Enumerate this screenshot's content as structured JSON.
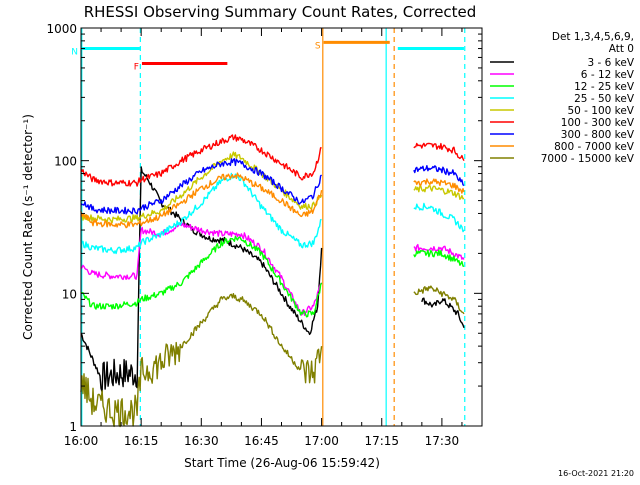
{
  "chart_data": {
    "type": "line",
    "title": "RHESSI Observing Summary Count Rates, Corrected",
    "ylabel": "Corrected Count Rate (s⁻¹ detector⁻¹)",
    "xlabel": "Start Time (26-Aug-06 15:59:42)",
    "yscale": "log",
    "ylim": [
      1,
      1000
    ],
    "xlim_min": [
      0,
      100
    ],
    "y_ticks": [
      {
        "value": 1,
        "label": "1"
      },
      {
        "value": 10,
        "label": "10"
      },
      {
        "value": 100,
        "label": "100"
      },
      {
        "value": 1000,
        "label": "1000"
      }
    ],
    "x_ticks": [
      {
        "value": 0,
        "label": "16:00"
      },
      {
        "value": 15,
        "label": "16:15"
      },
      {
        "value": 30,
        "label": "16:30"
      },
      {
        "value": 45,
        "label": "16:45"
      },
      {
        "value": 60,
        "label": "17:00"
      },
      {
        "value": 75,
        "label": "17:15"
      },
      {
        "value": 90,
        "label": "17:30"
      }
    ],
    "legend_header": [
      "Det 1,3,4,5,6,9,",
      "Att 0"
    ],
    "legend_position": "top-right",
    "timestamp": "16-Oct-2021 21:20",
    "flags": [
      {
        "label": "N",
        "color": "#00ffff",
        "bars": [
          [
            0,
            14.7
          ],
          [
            79,
            95.5
          ]
        ],
        "y": 700
      },
      {
        "label": "F",
        "color": "#ff0000",
        "bars": [
          [
            15.2,
            36.5
          ]
        ],
        "y": 540
      },
      {
        "label": "S",
        "color": "#ff8c00",
        "bars": [
          [
            60.5,
            77
          ]
        ],
        "y": 780
      }
    ],
    "vlines": [
      {
        "x": 0.2,
        "color": "#00ffff",
        "style": "solid"
      },
      {
        "x": 14.8,
        "color": "#00ffff",
        "style": "dashed"
      },
      {
        "x": 60.3,
        "color": "#ff8c00",
        "style": "solid"
      },
      {
        "x": 76.1,
        "color": "#00ffff",
        "style": "solid"
      },
      {
        "x": 78.1,
        "color": "#ff8c00",
        "style": "dashed"
      },
      {
        "x": 95.7,
        "color": "#00ffff",
        "style": "dashed"
      }
    ],
    "gap": [
      60,
      80
    ],
    "series": [
      {
        "name": "3 - 6 keV",
        "color": "#000000",
        "x": [
          0,
          5,
          10,
          14,
          15,
          17,
          20,
          25,
          28,
          32,
          36,
          40,
          45,
          50,
          52,
          55,
          57,
          59,
          60,
          80,
          85,
          88,
          90,
          92,
          94,
          95.5
        ],
        "y": [
          5,
          2.3,
          2.5,
          2.5,
          85,
          70,
          48,
          36,
          30,
          26,
          25,
          22,
          17,
          10,
          8,
          6,
          5,
          8,
          22,
          null,
          9,
          8,
          9,
          8,
          7,
          5.5
        ]
      },
      {
        "name": "6 - 12 keV",
        "color": "#ff00ff",
        "x": [
          0,
          3,
          8,
          14,
          15,
          20,
          25,
          30,
          35,
          40,
          45,
          50,
          55,
          58,
          60,
          80,
          83,
          87,
          90,
          93,
          95.5
        ],
        "y": [
          16,
          14,
          13.5,
          13.5,
          30,
          28,
          33,
          30,
          28,
          28,
          22,
          13,
          7,
          8,
          12,
          null,
          22,
          22,
          22,
          20,
          18
        ]
      },
      {
        "name": "12 - 25 keV",
        "color": "#00ff00",
        "x": [
          0,
          3,
          8,
          14,
          15,
          20,
          25,
          30,
          35,
          38,
          40,
          45,
          50,
          55,
          58,
          60,
          80,
          83,
          87,
          90,
          93,
          95.5
        ],
        "y": [
          10,
          8,
          8,
          8.5,
          9,
          10,
          12,
          17,
          24,
          26,
          26,
          20,
          12,
          7,
          7,
          12,
          null,
          20,
          20,
          20,
          18,
          16
        ]
      },
      {
        "name": "25 - 50 keV",
        "color": "#00ffff",
        "x": [
          0,
          3,
          8,
          14,
          15,
          20,
          25,
          30,
          35,
          38,
          40,
          45,
          50,
          55,
          58,
          60,
          80,
          83,
          87,
          90,
          93,
          95.5
        ],
        "y": [
          24,
          22,
          21,
          22,
          24,
          28,
          35,
          48,
          70,
          78,
          73,
          45,
          30,
          23,
          24,
          36,
          null,
          45,
          45,
          40,
          36,
          30
        ]
      },
      {
        "name": "50 - 100 keV",
        "color": "#c8c800",
        "x": [
          0,
          3,
          8,
          14,
          15,
          20,
          25,
          30,
          35,
          38,
          40,
          45,
          50,
          55,
          58,
          60,
          80,
          83,
          87,
          90,
          93,
          95.5
        ],
        "y": [
          38,
          37,
          36,
          37,
          38,
          42,
          55,
          75,
          100,
          110,
          105,
          80,
          60,
          45,
          46,
          55,
          null,
          60,
          62,
          60,
          57,
          52
        ]
      },
      {
        "name": "100 - 300 keV",
        "color": "#ff0000",
        "x": [
          0,
          3,
          8,
          14,
          15,
          20,
          25,
          30,
          35,
          38,
          40,
          45,
          50,
          55,
          58,
          60,
          80,
          83,
          87,
          90,
          93,
          95.5
        ],
        "y": [
          85,
          72,
          68,
          68,
          72,
          80,
          100,
          120,
          140,
          150,
          145,
          120,
          95,
          75,
          82,
          125,
          null,
          130,
          130,
          128,
          120,
          100
        ]
      },
      {
        "name": "300 - 800 keV",
        "color": "#0000ff",
        "x": [
          0,
          3,
          8,
          14,
          15,
          20,
          25,
          30,
          35,
          38,
          40,
          45,
          50,
          55,
          58,
          60,
          80,
          83,
          87,
          90,
          93,
          95.5
        ],
        "y": [
          50,
          43,
          42,
          42,
          44,
          50,
          65,
          83,
          95,
          98,
          95,
          80,
          62,
          48,
          55,
          78,
          null,
          85,
          88,
          85,
          80,
          65
        ]
      },
      {
        "name": "800 - 7000 keV",
        "color": "#ff8c00",
        "x": [
          0,
          3,
          8,
          14,
          15,
          20,
          25,
          30,
          35,
          38,
          40,
          45,
          50,
          55,
          58,
          60,
          80,
          83,
          87,
          90,
          93,
          95.5
        ],
        "y": [
          40,
          34,
          33,
          33,
          34,
          38,
          48,
          62,
          74,
          78,
          75,
          62,
          50,
          38,
          42,
          60,
          null,
          68,
          70,
          68,
          65,
          58
        ]
      },
      {
        "name": "7000 - 15000 keV",
        "color": "#808000",
        "x": [
          0,
          3,
          8,
          14,
          15,
          20,
          25,
          30,
          35,
          38,
          40,
          45,
          50,
          55,
          58,
          60,
          80,
          83,
          87,
          90,
          93,
          95.5
        ],
        "y": [
          2.2,
          1.5,
          1.3,
          1.3,
          2.5,
          3,
          4,
          6,
          9,
          9.5,
          9,
          7,
          4,
          2.6,
          2.5,
          4,
          null,
          10,
          11,
          10,
          9,
          7
        ]
      }
    ]
  }
}
